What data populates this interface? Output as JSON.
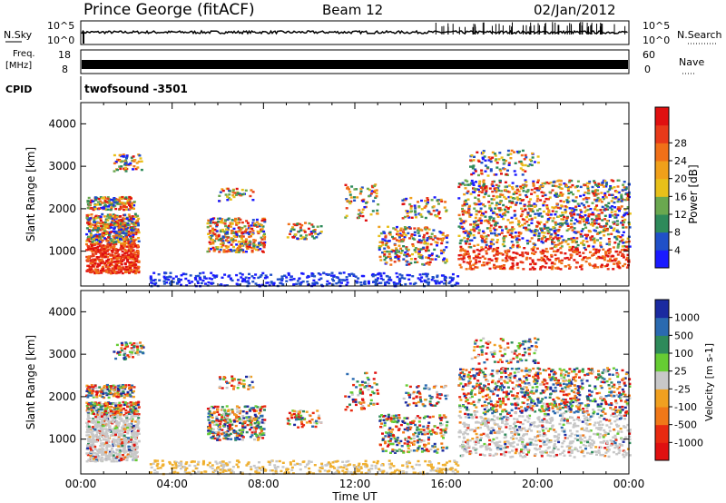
{
  "header": {
    "station": "Prince George (fitACF)",
    "beam": "Beam 12",
    "date": "02/Jan/2012"
  },
  "strip": {
    "nsky_label": "N.Sky",
    "nsky_top": "10^5",
    "nsky_bot": "10^0",
    "nsearch_label": "N.Search",
    "nsearch_top": "10^5",
    "nsearch_bot": "10^0",
    "freq_label_1": "Freq.",
    "freq_label_2": "[MHz]",
    "freq_top": "18",
    "freq_bot": "8",
    "nave_label": "Nave",
    "nave_top": "60",
    "nave_bot": "0",
    "cpid_label": "CPID",
    "cpid_value": "twofsound  -3501"
  },
  "colorbars": {
    "power": {
      "label": "Power [dB]",
      "ticks": [
        "4",
        "8",
        "12",
        "16",
        "20",
        "24",
        "28"
      ],
      "colors": [
        "#1a1aff",
        "#2050c8",
        "#2e8a5a",
        "#6aa84f",
        "#e8c01a",
        "#f0a01a",
        "#f07018",
        "#e83a1a",
        "#e01010"
      ]
    },
    "velocity": {
      "label": "Velocity [m s-1]",
      "ticks": [
        "1000",
        "500",
        "100",
        "25",
        "-25",
        "-100",
        "-500",
        "-1000"
      ],
      "colors": [
        "#1a2aa0",
        "#2a6ab0",
        "#2e8a5a",
        "#66cc33",
        "#c8c8c8",
        "#f0a020",
        "#f07818",
        "#e82a10",
        "#e01010"
      ]
    }
  },
  "chart_data": [
    {
      "type": "heatmap",
      "title": "Power",
      "xlabel": "Time UT",
      "ylabel": "Slant Range [km]",
      "x_ticks": [
        "00:00",
        "04:00",
        "08:00",
        "12:00",
        "16:00",
        "20:00",
        "00:00"
      ],
      "y_ticks": [
        "1000",
        "2000",
        "3000",
        "4000"
      ],
      "xlim_hours": [
        0,
        24
      ],
      "ylim_km": [
        180,
        4500
      ],
      "scale_label": "Power [dB]",
      "scale_ticks": [
        4,
        8,
        12,
        16,
        20,
        24,
        28
      ]
    },
    {
      "type": "heatmap",
      "title": "Velocity",
      "xlabel": "Time UT",
      "ylabel": "Slant Range [km]",
      "x_ticks": [
        "00:00",
        "04:00",
        "08:00",
        "12:00",
        "16:00",
        "20:00",
        "00:00"
      ],
      "y_ticks": [
        "1000",
        "2000",
        "3000",
        "4000"
      ],
      "xlim_hours": [
        0,
        24
      ],
      "ylim_km": [
        180,
        4500
      ],
      "scale_label": "Velocity [m s-1]",
      "scale_ticks": [
        1000,
        500,
        100,
        25,
        -25,
        -100,
        -500,
        -1000
      ]
    }
  ]
}
